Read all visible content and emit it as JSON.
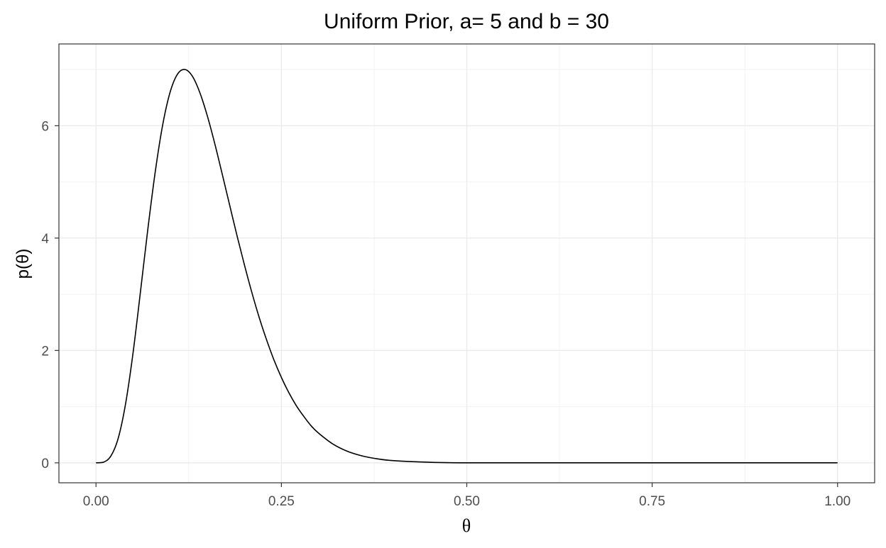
{
  "chart_data": {
    "type": "line",
    "title": "Uniform Prior, a= 5 and b = 30",
    "xlabel": "θ",
    "ylabel": "p(θ)",
    "xlim": [
      -0.05,
      1.05
    ],
    "ylim": [
      -0.355,
      7.455
    ],
    "x_ticks": [
      0,
      0.25,
      0.5,
      0.75,
      1
    ],
    "x_tick_labels": [
      "0.00",
      "0.25",
      "0.50",
      "0.75",
      "1.00"
    ],
    "y_ticks": [
      0,
      2,
      4,
      6
    ],
    "y_tick_labels": [
      "0",
      "2",
      "4",
      "6"
    ],
    "grid": true,
    "legend": "none",
    "distribution": "Beta(5, 30) density",
    "series": [
      {
        "color": "#000000",
        "x": [
          0,
          0.01,
          0.02,
          0.03,
          0.04,
          0.05,
          0.06,
          0.07,
          0.08,
          0.09,
          0.1,
          0.11,
          0.12,
          0.13,
          0.14,
          0.15,
          0.16,
          0.17,
          0.18,
          0.19,
          0.2,
          0.21,
          0.22,
          0.23,
          0.24,
          0.25,
          0.26,
          0.27,
          0.28,
          0.29,
          0.3,
          0.32,
          0.34,
          0.36,
          0.38,
          0.4,
          0.45,
          0.5,
          0.6,
          0.7,
          0.8,
          0.9,
          1.0
        ],
        "values": [
          0,
          0.01,
          0.12,
          0.44,
          1.06,
          1.96,
          3.05,
          4.17,
          5.19,
          6.02,
          6.6,
          6.92,
          7.0,
          6.88,
          6.59,
          6.18,
          5.69,
          5.15,
          4.6,
          4.05,
          3.53,
          3.04,
          2.59,
          2.19,
          1.83,
          1.52,
          1.25,
          1.02,
          0.83,
          0.66,
          0.53,
          0.33,
          0.2,
          0.12,
          0.07,
          0.04,
          0.01,
          0,
          0,
          0,
          0,
          0,
          0
        ]
      }
    ]
  }
}
